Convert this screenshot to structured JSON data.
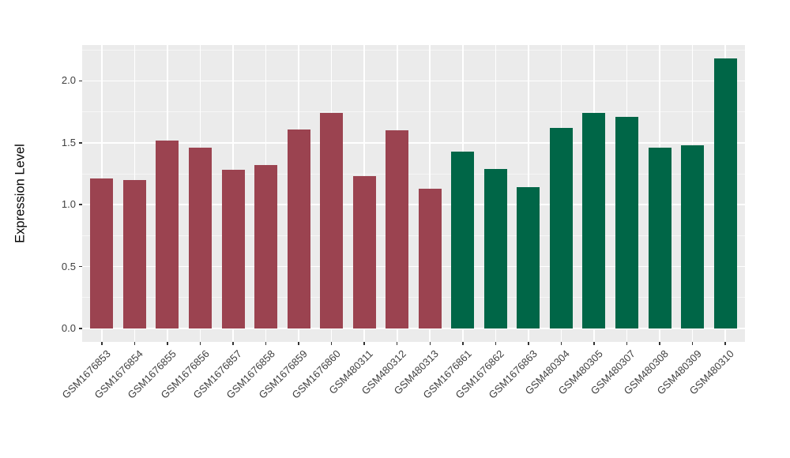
{
  "figure": {
    "background": "#FFFFFF",
    "panel_background": "#EBEBEB",
    "gridline_color": "#FFFFFF",
    "tick_color": "#333333",
    "axis_text_color": "#404040",
    "axis_title_color": "#000000"
  },
  "chart_data": {
    "type": "bar",
    "title": "",
    "xlabel": "",
    "ylabel": "Expression Level",
    "grid": true,
    "legend": false,
    "ylim": [
      -0.11,
      2.29
    ],
    "x_tick_rotation": 45,
    "yticks": [
      {
        "label": "0.0",
        "value": 0.0
      },
      {
        "label": "0.5",
        "value": 0.5
      },
      {
        "label": "1.0",
        "value": 1.0
      },
      {
        "label": "1.5",
        "value": 1.5
      },
      {
        "label": "2.0",
        "value": 2.0
      }
    ],
    "minor_gridline_values": [
      0.25,
      0.75,
      1.25,
      1.75,
      2.25
    ],
    "palette": {
      "maroon": "#9B4350",
      "green": "#006647"
    },
    "bars": [
      {
        "label": "GSM1676853",
        "value": 1.21,
        "color": "maroon"
      },
      {
        "label": "GSM1676854",
        "value": 1.2,
        "color": "maroon"
      },
      {
        "label": "GSM1676855",
        "value": 1.52,
        "color": "maroon"
      },
      {
        "label": "GSM1676856",
        "value": 1.46,
        "color": "maroon"
      },
      {
        "label": "GSM1676857",
        "value": 1.28,
        "color": "maroon"
      },
      {
        "label": "GSM1676858",
        "value": 1.32,
        "color": "maroon"
      },
      {
        "label": "GSM1676859",
        "value": 1.61,
        "color": "maroon"
      },
      {
        "label": "GSM1676860",
        "value": 1.74,
        "color": "maroon"
      },
      {
        "label": "GSM480311",
        "value": 1.23,
        "color": "maroon"
      },
      {
        "label": "GSM480312",
        "value": 1.6,
        "color": "maroon"
      },
      {
        "label": "GSM480313",
        "value": 1.13,
        "color": "maroon"
      },
      {
        "label": "GSM1676861",
        "value": 1.43,
        "color": "green"
      },
      {
        "label": "GSM1676862",
        "value": 1.29,
        "color": "green"
      },
      {
        "label": "GSM1676863",
        "value": 1.14,
        "color": "green"
      },
      {
        "label": "GSM480304",
        "value": 1.62,
        "color": "green"
      },
      {
        "label": "GSM480305",
        "value": 1.74,
        "color": "green"
      },
      {
        "label": "GSM480307",
        "value": 1.71,
        "color": "green"
      },
      {
        "label": "GSM480308",
        "value": 1.46,
        "color": "green"
      },
      {
        "label": "GSM480309",
        "value": 1.48,
        "color": "green"
      },
      {
        "label": "GSM480310",
        "value": 2.18,
        "color": "green"
      }
    ]
  }
}
